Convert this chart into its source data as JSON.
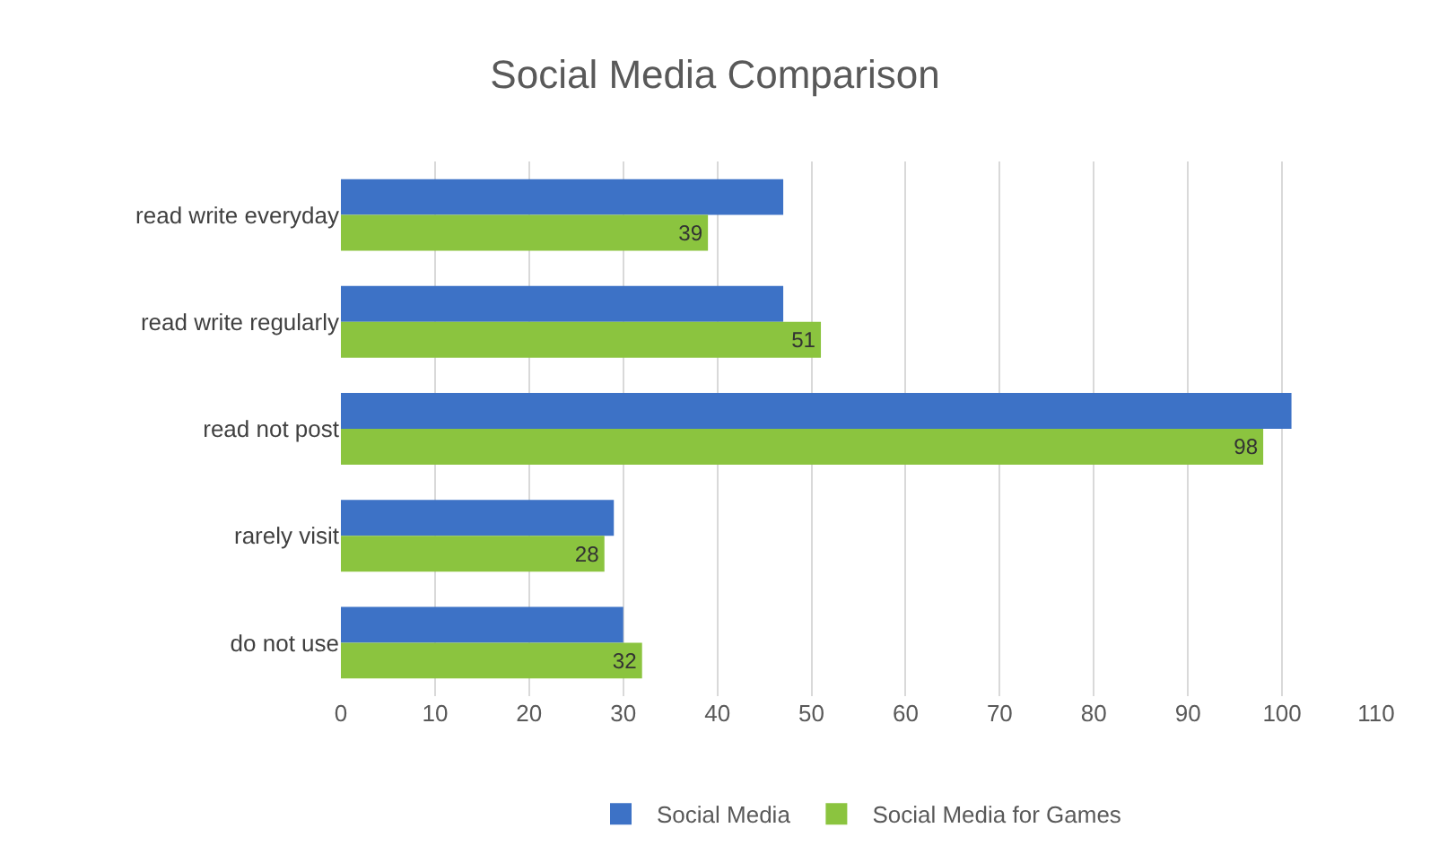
{
  "chart_data": {
    "type": "bar",
    "orientation": "horizontal",
    "title": "Social Media Comparison",
    "categories": [
      "read write everyday",
      "read write regularly",
      "read not post",
      "rarely visit",
      "do not use"
    ],
    "series": [
      {
        "name": "Social Media",
        "color": "#3d72c6",
        "values": [
          47,
          47,
          101,
          29,
          30
        ]
      },
      {
        "name": "Social Media for Games",
        "color": "#8bc43f",
        "values": [
          39,
          51,
          98,
          28,
          32
        ],
        "value_labels": [
          "39",
          "51",
          "98",
          "28",
          "32"
        ]
      }
    ],
    "xlim": [
      0,
      110
    ],
    "xticks": [
      0,
      10,
      20,
      30,
      40,
      50,
      60,
      70,
      80,
      90,
      100,
      110
    ],
    "grid": "x",
    "legend": "bottom"
  }
}
